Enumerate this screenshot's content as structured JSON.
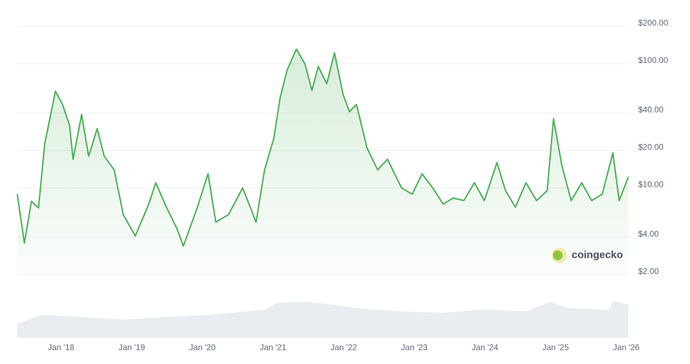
{
  "chart_data": {
    "type": "line",
    "log_scale": true,
    "grid": true,
    "watermark": "coingecko",
    "series": [
      {
        "color": "#4cae57",
        "x": [
          2017.38,
          2017.48,
          2017.58,
          2017.68,
          2017.77,
          2017.92,
          2018.02,
          2018.12,
          2018.17,
          2018.29,
          2018.39,
          2018.51,
          2018.61,
          2018.75,
          2018.88,
          2019.05,
          2019.24,
          2019.34,
          2019.49,
          2019.64,
          2019.73,
          2019.93,
          2020.08,
          2020.19,
          2020.37,
          2020.57,
          2020.76,
          2020.88,
          2021.01,
          2021.1,
          2021.2,
          2021.33,
          2021.45,
          2021.55,
          2021.64,
          2021.76,
          2021.87,
          2021.99,
          2022.08,
          2022.18,
          2022.33,
          2022.48,
          2022.62,
          2022.82,
          2022.97,
          2023.11,
          2023.26,
          2023.41,
          2023.55,
          2023.7,
          2023.85,
          2023.99,
          2024.17,
          2024.29,
          2024.43,
          2024.58,
          2024.73,
          2024.88,
          2024.97,
          2025.09,
          2025.22,
          2025.37,
          2025.51,
          2025.66,
          2025.81,
          2025.9,
          2026.03
        ],
        "values": [
          8.9,
          3.6,
          7.8,
          6.9,
          23,
          60,
          47,
          32,
          17,
          39,
          18,
          30,
          18,
          14,
          6.1,
          4.1,
          7.4,
          11,
          7,
          4.7,
          3.4,
          7,
          13,
          5.3,
          6.1,
          10,
          5.3,
          14,
          25,
          53,
          89,
          131,
          100,
          61,
          95,
          69,
          122,
          57,
          41,
          47,
          21,
          14,
          17,
          10,
          8.9,
          13,
          10,
          7.4,
          8.3,
          7.9,
          11,
          7.9,
          16,
          9.5,
          7,
          11,
          7.9,
          9.5,
          36,
          15,
          7.9,
          11,
          7.9,
          8.9,
          19.2,
          7.9,
          12.3
        ]
      }
    ],
    "xlim": [
      2017.38,
      2026.03
    ],
    "xticks": [
      {
        "value": 2018,
        "label": "Jan '18"
      },
      {
        "value": 2019,
        "label": "Jan '19"
      },
      {
        "value": 2020,
        "label": "Jan '20"
      },
      {
        "value": 2021,
        "label": "Jan '21"
      },
      {
        "value": 2022,
        "label": "Jan '22"
      },
      {
        "value": 2023,
        "label": "Jan '23"
      },
      {
        "value": 2024,
        "label": "Jan '24"
      },
      {
        "value": 2025,
        "label": "Jan '25"
      },
      {
        "value": 2026,
        "label": "Jan '26"
      }
    ],
    "ylim": [
      2,
      200
    ],
    "yticks": [
      {
        "value": 2,
        "label": "$2.00"
      },
      {
        "value": 4,
        "label": "$4.00"
      },
      {
        "value": 10,
        "label": "$10.00"
      },
      {
        "value": 20,
        "label": "$20.00"
      },
      {
        "value": 40,
        "label": "$40.00"
      },
      {
        "value": 100,
        "label": "$100.00"
      },
      {
        "value": 200,
        "label": "$200.00"
      }
    ]
  }
}
